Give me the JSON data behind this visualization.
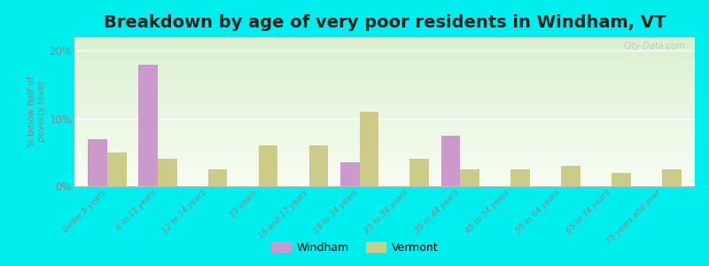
{
  "title": "Breakdown by age of very poor residents in Windham, VT",
  "ylabel": "% below half of\npoverty level",
  "categories": [
    "Under 5 years",
    "6 to 11 years",
    "12 to 14 years",
    "15 years",
    "16 and 17 years",
    "18 to 24 years",
    "25 to 34 years",
    "35 to 44 years",
    "45 to 54 years",
    "55 to 64 years",
    "65 to 74 years",
    "75 years and over"
  ],
  "windham": [
    7.0,
    18.0,
    0.0,
    0.0,
    0.0,
    3.5,
    0.0,
    7.5,
    0.0,
    0.0,
    0.0,
    0.0
  ],
  "vermont": [
    5.0,
    4.0,
    2.5,
    6.0,
    6.0,
    11.0,
    4.0,
    2.5,
    2.5,
    3.0,
    2.0,
    2.5
  ],
  "windham_color": "#cc99cc",
  "vermont_color": "#cccc88",
  "outer_bg": "#00eeee",
  "ylim": [
    0,
    22
  ],
  "yticks": [
    0,
    10,
    20
  ],
  "ytick_labels": [
    "0%",
    "10%",
    "20%"
  ],
  "bar_width": 0.38,
  "title_fontsize": 14,
  "tick_label_fontsize": 6.5,
  "watermark": "City-Data.com"
}
